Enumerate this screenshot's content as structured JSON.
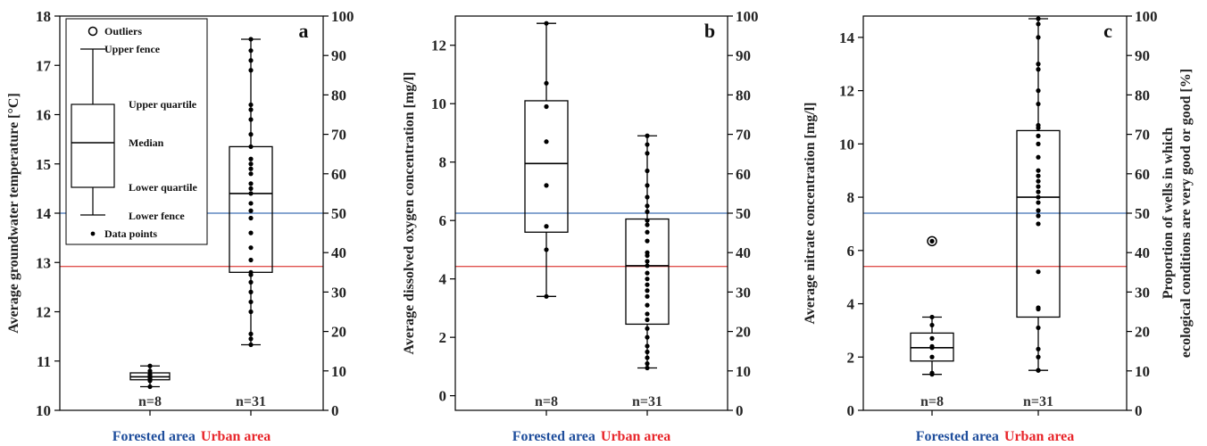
{
  "colors": {
    "forested": "#1f4e9c",
    "urban": "#e8262b",
    "ref_forested_line": "#3d6fb3",
    "ref_urban_line": "#e0524f",
    "box": "#000000"
  },
  "groups": [
    {
      "key": "forested",
      "label": "Forested area",
      "n": "n=8"
    },
    {
      "key": "urban",
      "label": "Urban area",
      "n": "n=31"
    }
  ],
  "legend": {
    "items": [
      "Outliers",
      "Upper fence",
      "Upper quartile",
      "Median",
      "Lower quartile",
      "Lower fence",
      "Data points"
    ]
  },
  "chart_data": [
    {
      "type": "box",
      "panel": "a",
      "ylabel": "Average groundwater temperature [°C]",
      "ylim": [
        10,
        18
      ],
      "yticks": [
        10,
        11,
        12,
        13,
        14,
        15,
        16,
        17,
        18
      ],
      "y2lim": [
        0,
        100
      ],
      "y2ticks": [
        0,
        10,
        20,
        30,
        40,
        50,
        60,
        70,
        80,
        90,
        100
      ],
      "y2label": "",
      "reference_lines_right_axis": {
        "forested": 50,
        "urban": 36.5
      },
      "boxes": [
        {
          "group": "forested",
          "lower_fence": 10.48,
          "q1": 10.62,
          "median": 10.68,
          "q3": 10.76,
          "upper_fence": 10.9,
          "points": [
            10.48,
            10.6,
            10.63,
            10.66,
            10.7,
            10.73,
            10.8,
            10.9
          ],
          "outliers": []
        },
        {
          "group": "urban",
          "lower_fence": 11.33,
          "q1": 12.8,
          "median": 14.4,
          "q3": 15.35,
          "upper_fence": 17.53,
          "points": [
            11.33,
            11.45,
            11.55,
            12.0,
            12.2,
            12.4,
            12.6,
            12.75,
            12.8,
            13.05,
            13.3,
            13.6,
            13.9,
            14.05,
            14.2,
            14.4,
            14.5,
            14.6,
            14.8,
            14.9,
            15.0,
            15.1,
            15.35,
            15.6,
            15.9,
            16.1,
            16.2,
            16.9,
            17.1,
            17.3,
            17.53
          ],
          "outliers": []
        }
      ]
    },
    {
      "type": "box",
      "panel": "b",
      "ylabel": "Average dissolved oxygen concentration [mg/l]",
      "ylim": [
        -0.5,
        13.0
      ],
      "yticks": [
        0,
        2,
        4,
        6,
        8,
        10,
        12
      ],
      "y2lim": [
        0,
        100
      ],
      "y2ticks": [
        0,
        10,
        20,
        30,
        40,
        50,
        60,
        70,
        80,
        90,
        100
      ],
      "y2label": "",
      "reference_lines_right_axis": {
        "forested": 50,
        "urban": 36.5
      },
      "boxes": [
        {
          "group": "forested",
          "lower_fence": 3.4,
          "q1": 5.6,
          "median": 7.95,
          "q3": 10.1,
          "upper_fence": 12.75,
          "points": [
            3.4,
            5.0,
            5.8,
            7.2,
            8.7,
            9.9,
            10.7,
            12.75
          ],
          "outliers": []
        },
        {
          "group": "urban",
          "lower_fence": 0.95,
          "q1": 2.45,
          "median": 4.45,
          "q3": 6.05,
          "upper_fence": 8.9,
          "points": [
            0.95,
            1.1,
            1.3,
            1.5,
            1.7,
            2.0,
            2.3,
            2.6,
            2.8,
            3.1,
            3.4,
            3.6,
            3.8,
            4.0,
            4.2,
            4.45,
            4.6,
            4.8,
            4.9,
            5.3,
            5.6,
            5.85,
            6.0,
            6.3,
            6.5,
            6.8,
            7.2,
            7.7,
            8.3,
            8.6,
            8.9
          ],
          "outliers": []
        }
      ]
    },
    {
      "type": "box",
      "panel": "c",
      "ylabel": "Average nitrate concentration [mg/l]",
      "ylim": [
        0,
        14.8
      ],
      "yticks": [
        0,
        2,
        4,
        6,
        8,
        10,
        12,
        14
      ],
      "y2lim": [
        0,
        100
      ],
      "y2ticks": [
        0,
        10,
        20,
        30,
        40,
        50,
        60,
        70,
        80,
        90,
        100
      ],
      "y2label_line1": "Proportion of wells in which",
      "y2label_line2": "ecological conditions are very good or good [%]",
      "reference_lines_right_axis": {
        "forested": 50,
        "urban": 36.5
      },
      "boxes": [
        {
          "group": "forested",
          "lower_fence": 1.35,
          "q1": 1.85,
          "median": 2.35,
          "q3": 2.9,
          "upper_fence": 3.5,
          "points": [
            1.35,
            1.4,
            2.0,
            2.35,
            2.4,
            2.7,
            3.2,
            3.5
          ],
          "outliers": [
            6.35
          ]
        },
        {
          "group": "urban",
          "lower_fence": 1.5,
          "q1": 3.5,
          "median": 8.0,
          "q3": 10.5,
          "upper_fence": 14.7,
          "points": [
            1.5,
            1.5,
            1.5,
            2.0,
            2.3,
            3.1,
            3.8,
            3.85,
            5.2,
            7.0,
            7.3,
            7.5,
            7.8,
            8.0,
            8.2,
            8.4,
            8.6,
            8.8,
            9.0,
            9.5,
            10.0,
            10.3,
            10.6,
            10.7,
            11.5,
            12.0,
            12.8,
            13.0,
            14.0,
            14.5,
            14.7
          ],
          "outliers": []
        }
      ]
    }
  ]
}
